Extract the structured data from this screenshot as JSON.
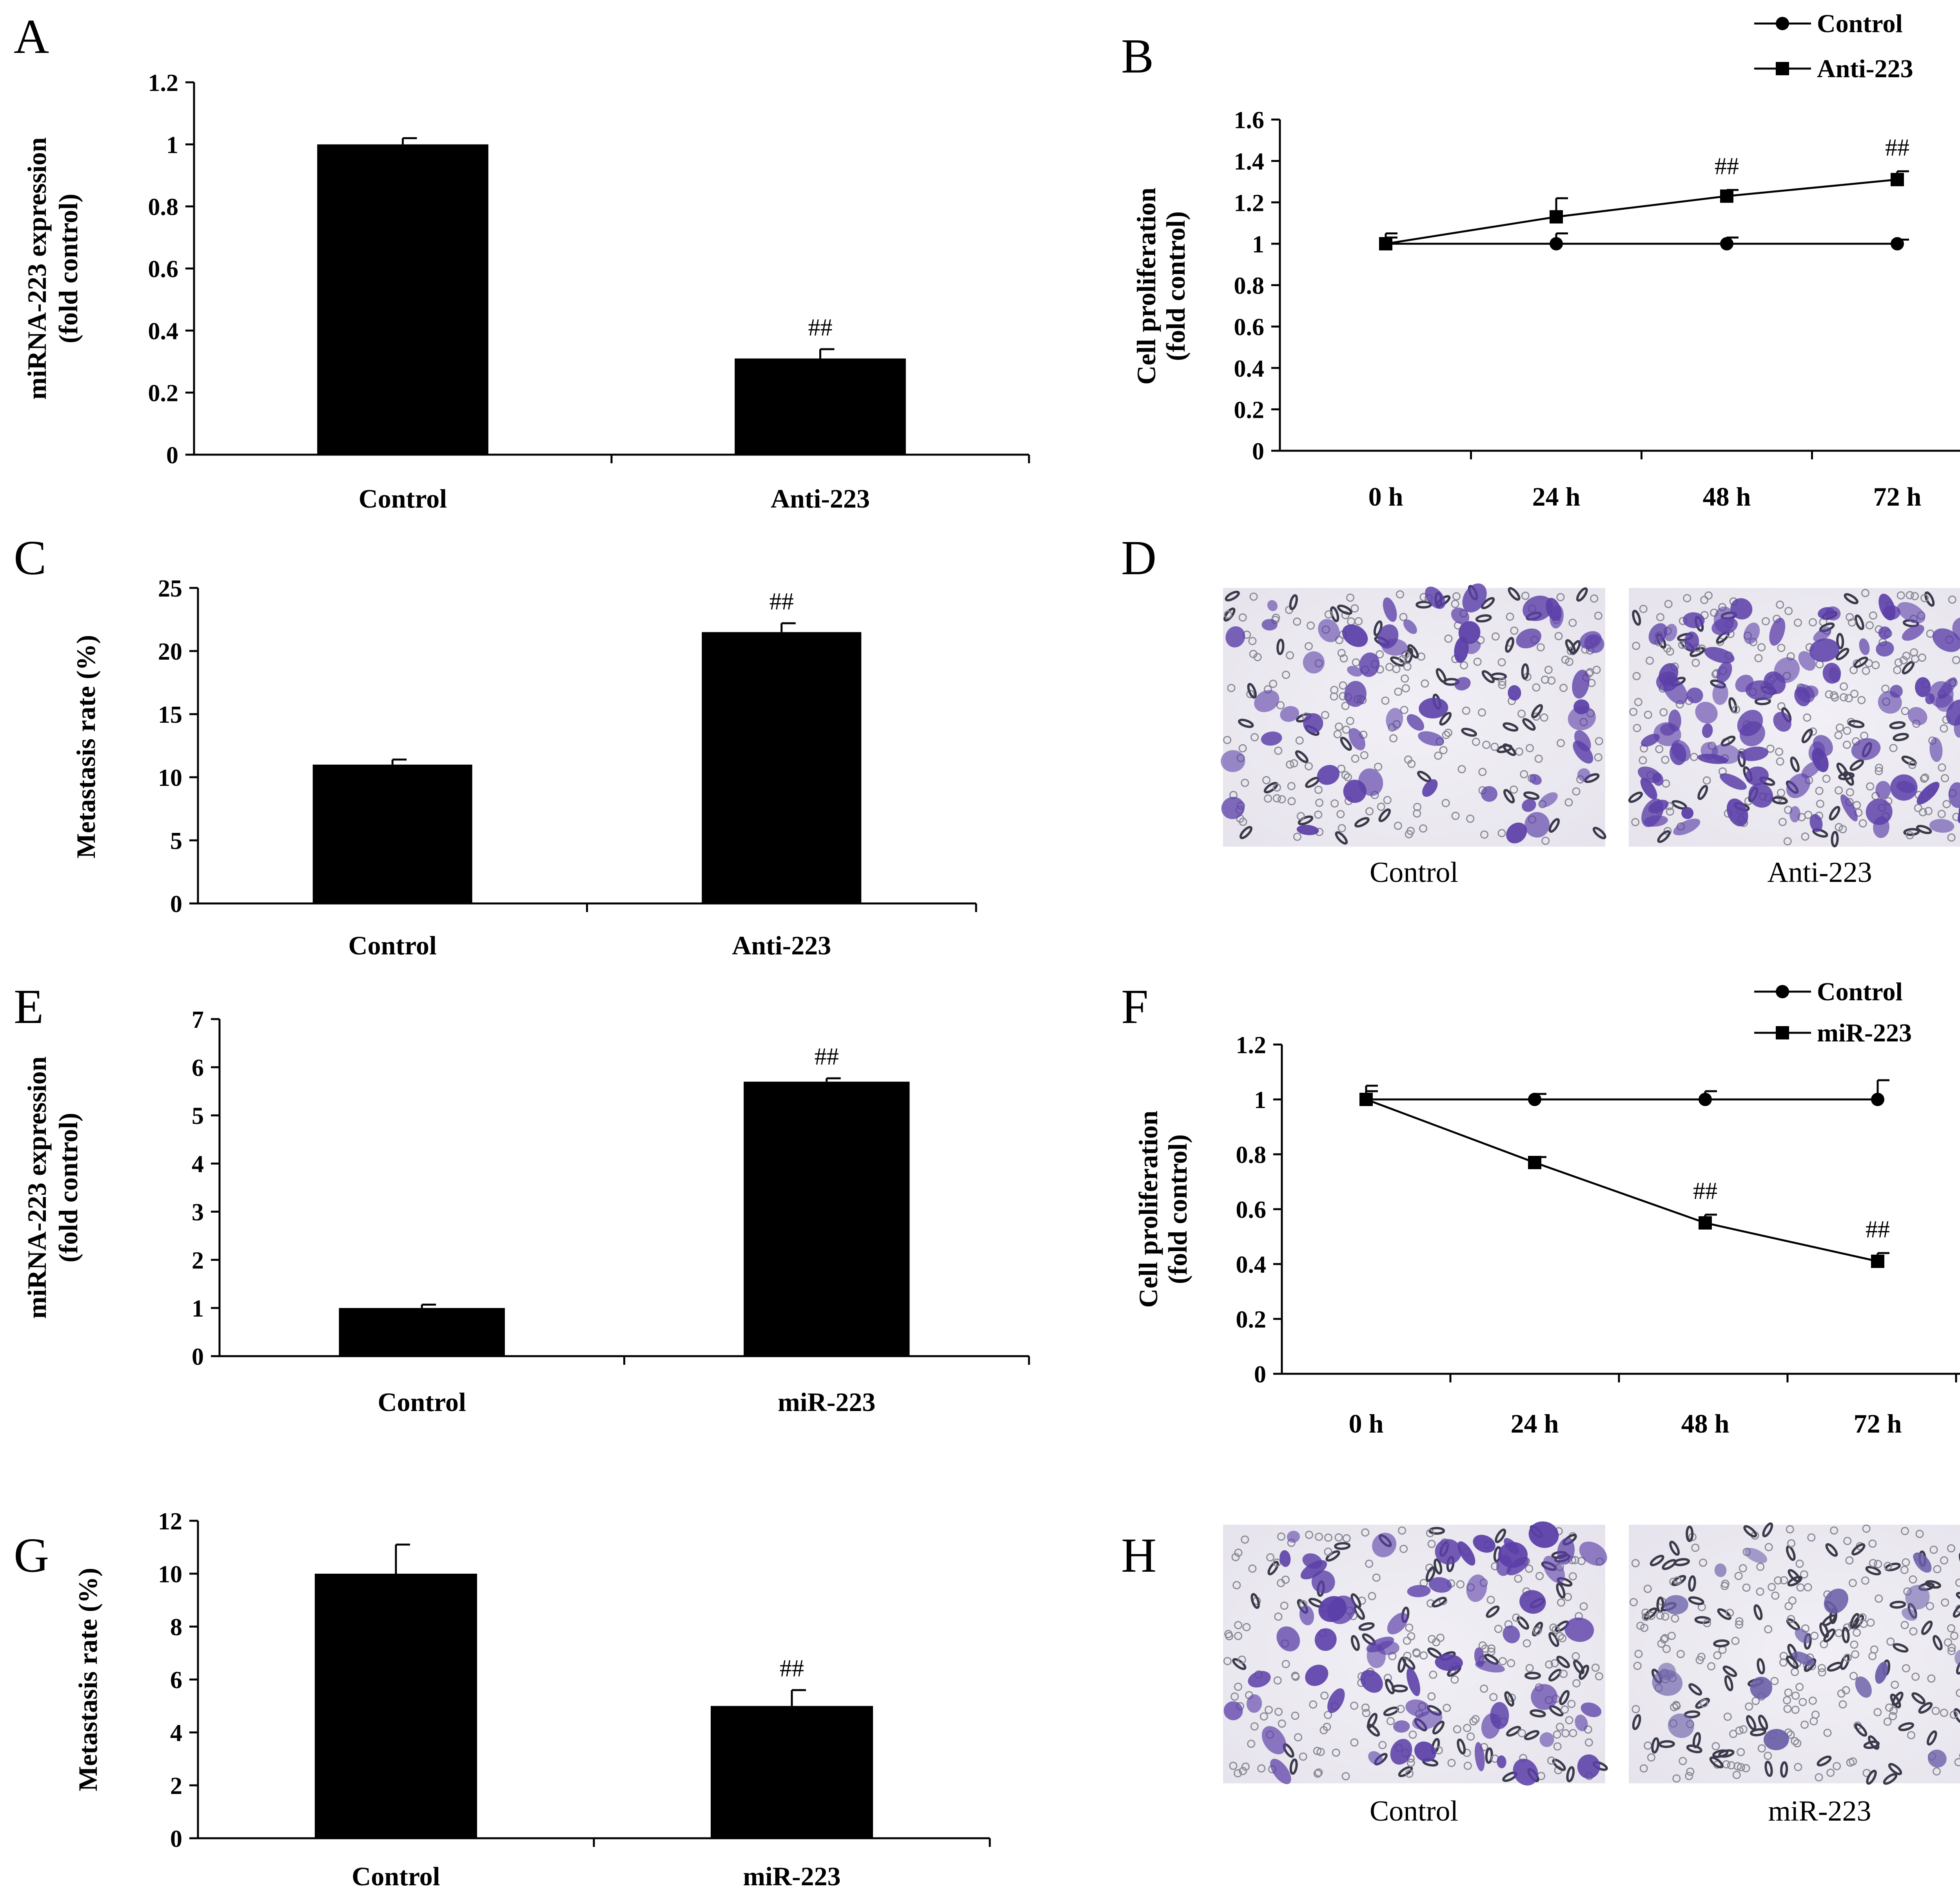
{
  "chart_data": [
    {
      "panel": "A",
      "type": "bar",
      "categories": [
        "Control",
        "Anti-223"
      ],
      "values": [
        1.0,
        0.31
      ],
      "errors": [
        0.02,
        0.03
      ],
      "annotations": [
        "",
        "##"
      ],
      "ylabel": "miRNA-223 expression",
      "ylabel2": "(fold control)",
      "ylim": [
        0,
        1.2
      ],
      "yticks": [
        "0",
        "0.2",
        "0.4",
        "0.6",
        "0.8",
        "1",
        "1.2"
      ]
    },
    {
      "panel": "B",
      "type": "line",
      "x": [
        "0 h",
        "24 h",
        "48 h",
        "72 h"
      ],
      "series": [
        {
          "name": "Control",
          "marker": "circle",
          "values": [
            1.0,
            1.0,
            1.0,
            1.0
          ],
          "errors": [
            0.05,
            0.05,
            0.03,
            0.02
          ]
        },
        {
          "name": "Anti-223",
          "marker": "square",
          "values": [
            1.0,
            1.13,
            1.23,
            1.31
          ],
          "errors": [
            0.03,
            0.09,
            0.03,
            0.04
          ]
        }
      ],
      "annotations": [
        "",
        "",
        "##",
        "##"
      ],
      "ylabel": "Cell proliferation",
      "ylabel2": "(fold control)",
      "ylim": [
        0,
        1.6
      ],
      "yticks": [
        "0",
        "0.2",
        "0.4",
        "0.6",
        "0.8",
        "1",
        "1.2",
        "1.4",
        "1.6"
      ]
    },
    {
      "panel": "C",
      "type": "bar",
      "categories": [
        "Control",
        "Anti-223"
      ],
      "values": [
        11.0,
        21.5
      ],
      "errors": [
        0.4,
        0.7
      ],
      "annotations": [
        "",
        "##"
      ],
      "ylabel": "Metastasis rate (%)",
      "ylabel2": "",
      "ylim": [
        0,
        25
      ],
      "yticks": [
        "0",
        "5",
        "10",
        "15",
        "20",
        "25"
      ]
    },
    {
      "panel": "E",
      "type": "bar",
      "categories": [
        "Control",
        "miR-223"
      ],
      "values": [
        1.0,
        5.7
      ],
      "errors": [
        0.07,
        0.07
      ],
      "annotations": [
        "",
        "##"
      ],
      "ylabel": "miRNA-223 expression",
      "ylabel2": "(fold control)",
      "ylim": [
        0,
        7
      ],
      "yticks": [
        "0",
        "1",
        "2",
        "3",
        "4",
        "5",
        "6",
        "7"
      ]
    },
    {
      "panel": "F",
      "type": "line",
      "x": [
        "0 h",
        "24 h",
        "48 h",
        "72 h"
      ],
      "series": [
        {
          "name": "Control",
          "marker": "circle",
          "values": [
            1.0,
            1.0,
            1.0,
            1.0
          ],
          "errors": [
            0.05,
            0.02,
            0.03,
            0.07
          ]
        },
        {
          "name": "miR-223",
          "marker": "square",
          "values": [
            1.0,
            0.77,
            0.55,
            0.41
          ],
          "errors": [
            0.03,
            0.02,
            0.03,
            0.03
          ]
        }
      ],
      "annotations": [
        "",
        "",
        "##",
        "##"
      ],
      "ylabel": "Cell proliferation",
      "ylabel2": "(fold control)",
      "ylim": [
        0,
        1.2
      ],
      "yticks": [
        "0",
        "0.2",
        "0.4",
        "0.6",
        "0.8",
        "1",
        "1.2"
      ]
    },
    {
      "panel": "G",
      "type": "bar",
      "categories": [
        "Control",
        "miR-223"
      ],
      "values": [
        10.0,
        5.0
      ],
      "errors": [
        1.1,
        0.6
      ],
      "annotations": [
        "",
        "##"
      ],
      "ylabel": "Metastasis rate (%)",
      "ylabel2": "",
      "ylim": [
        0,
        12
      ],
      "yticks": [
        "0",
        "2",
        "4",
        "6",
        "8",
        "10",
        "12"
      ]
    }
  ],
  "micrographs": [
    {
      "panel": "D",
      "captions": [
        "Control",
        "Anti-223"
      ],
      "stain_color": "#5b3fa8"
    },
    {
      "panel": "H",
      "captions": [
        "Control",
        "miR-223"
      ],
      "stain_color": "#5b3fa8"
    }
  ],
  "panel_letters": [
    "A",
    "B",
    "C",
    "D",
    "E",
    "F",
    "G",
    "H"
  ]
}
